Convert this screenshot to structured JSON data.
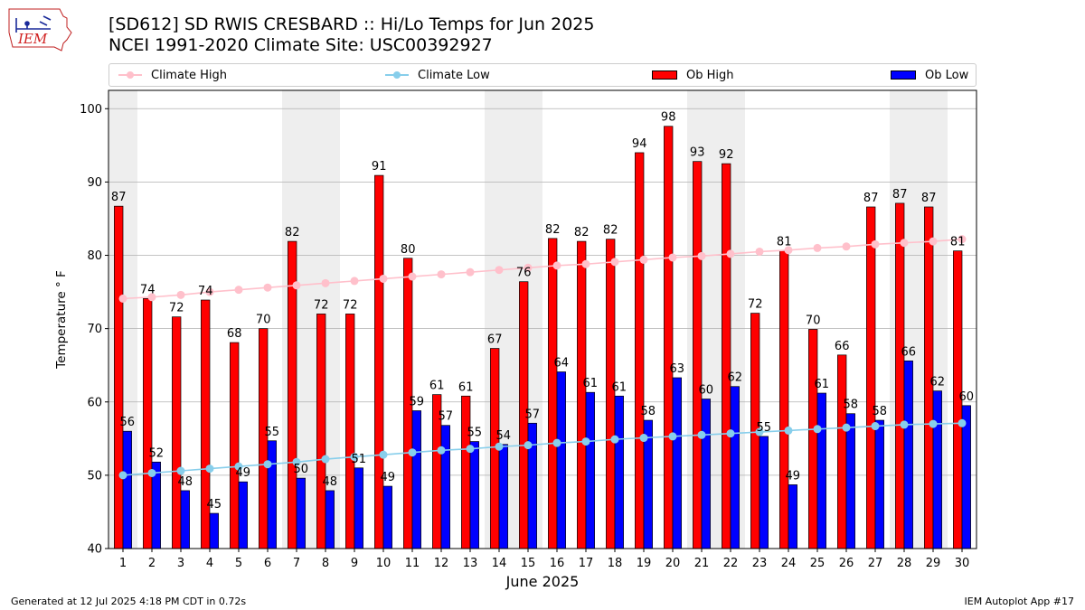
{
  "header": {
    "title_line1": "[SD612] SD RWIS CRESBARD :: Hi/Lo Temps for Jun 2025",
    "title_line2": "NCEI 1991-2020 Climate Site: USC00392927",
    "logo_text": "IEM"
  },
  "footer": {
    "generated": "Generated at 12 Jul 2025 4:18 PM CDT in 0.72s",
    "app": "IEM Autoplot App #17"
  },
  "legend": {
    "climate_high": "Climate High",
    "climate_low": "Climate Low",
    "ob_high": "Ob High",
    "ob_low": "Ob Low"
  },
  "colors": {
    "ob_high": "#ff0000",
    "ob_low": "#0000ff",
    "climate_high": "#ffc0cb",
    "climate_low": "#87ceeb",
    "weekend_shade": "#eeeeee",
    "grid": "#b0b0b0"
  },
  "chart_data": {
    "type": "bar",
    "title": "[SD612] SD RWIS CRESBARD :: Hi/Lo Temps for Jun 2025",
    "xlabel": "June 2025",
    "ylabel": "Temperature ° F",
    "ylim": [
      40,
      102.5
    ],
    "yticks": [
      40,
      50,
      60,
      70,
      80,
      90,
      100
    ],
    "grid": true,
    "legend_position": "top",
    "categories": [
      "1",
      "2",
      "3",
      "4",
      "5",
      "6",
      "7",
      "8",
      "9",
      "10",
      "11",
      "12",
      "13",
      "14",
      "15",
      "16",
      "17",
      "18",
      "19",
      "20",
      "21",
      "22",
      "23",
      "24",
      "25",
      "26",
      "27",
      "28",
      "29",
      "30"
    ],
    "shaded_days": [
      1,
      7,
      8,
      14,
      15,
      21,
      22,
      28,
      29
    ],
    "series": [
      {
        "name": "Ob High",
        "kind": "bar",
        "values": [
          86.7,
          74.1,
          71.6,
          73.9,
          68.1,
          70.0,
          81.9,
          72.0,
          72.0,
          90.9,
          79.6,
          61.0,
          60.8,
          67.3,
          76.4,
          82.3,
          81.9,
          82.2,
          94.0,
          97.6,
          92.8,
          92.5,
          72.1,
          80.6,
          69.9,
          66.4,
          86.6,
          87.1,
          86.6,
          80.6
        ],
        "labels": [
          "87",
          "74",
          "72",
          "74",
          "68",
          "70",
          "82",
          "72",
          "72",
          "91",
          "80",
          "61",
          "61",
          "67",
          "76",
          "82",
          "82",
          "82",
          "94",
          "98",
          "93",
          "92",
          "72",
          "81",
          "70",
          "66",
          "87",
          "87",
          "87",
          "81"
        ]
      },
      {
        "name": "Ob Low",
        "kind": "bar",
        "values": [
          56.0,
          51.8,
          47.9,
          44.8,
          49.1,
          54.7,
          49.6,
          47.9,
          51.0,
          48.5,
          58.8,
          56.8,
          54.6,
          54.2,
          57.1,
          64.1,
          61.3,
          60.8,
          57.5,
          63.3,
          60.4,
          62.1,
          55.3,
          48.7,
          61.2,
          58.4,
          57.5,
          65.6,
          61.5,
          59.5
        ],
        "labels": [
          "56",
          "52",
          "48",
          "45",
          "49",
          "55",
          "50",
          "48",
          "51",
          "49",
          "59",
          "57",
          "55",
          "54",
          "57",
          "64",
          "61",
          "61",
          "58",
          "63",
          "60",
          "62",
          "55",
          "49",
          "61",
          "58",
          "58",
          "66",
          "62",
          "60"
        ]
      },
      {
        "name": "Climate High",
        "kind": "line",
        "values": [
          74.1,
          74.3,
          74.6,
          75.0,
          75.3,
          75.6,
          75.9,
          76.2,
          76.5,
          76.8,
          77.1,
          77.4,
          77.7,
          78.0,
          78.3,
          78.6,
          78.8,
          79.1,
          79.4,
          79.7,
          79.9,
          80.2,
          80.5,
          80.7,
          81.0,
          81.2,
          81.5,
          81.7,
          81.9,
          82.2
        ]
      },
      {
        "name": "Climate Low",
        "kind": "line",
        "values": [
          50.0,
          50.3,
          50.6,
          50.9,
          51.2,
          51.5,
          51.8,
          52.2,
          52.5,
          52.8,
          53.1,
          53.4,
          53.6,
          53.9,
          54.1,
          54.4,
          54.6,
          54.9,
          55.1,
          55.3,
          55.5,
          55.7,
          55.9,
          56.1,
          56.3,
          56.5,
          56.7,
          56.9,
          57.0,
          57.1
        ]
      }
    ]
  }
}
